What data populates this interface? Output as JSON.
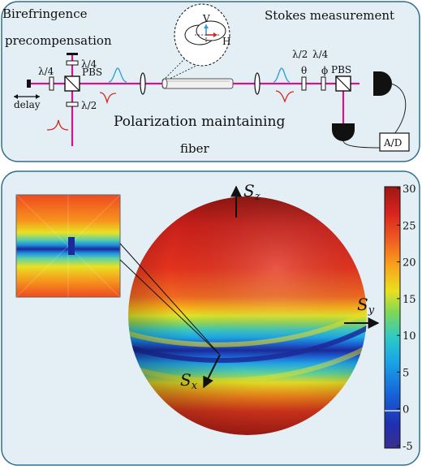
{
  "setup": {
    "left_title_1": "Birefringence",
    "left_title_2": "precompensation",
    "right_title": "Stokes measurement",
    "fiber_label_1": "Polarization maintaining",
    "fiber_label_2": "fiber",
    "delay_label": "delay",
    "quarter_wave_left": "λ/4",
    "quarter_wave_top": "λ/4",
    "half_wave_bottom": "λ/2",
    "pbs_left": "PBS",
    "half_wave_right": "λ/2",
    "quarter_wave_right": "λ/4",
    "theta": "θ",
    "phi": "ϕ",
    "pbs_right": "PBS",
    "ad_label": "A/D",
    "inset_v": "V",
    "inset_h": "H"
  },
  "sphere": {
    "axis_z": "S",
    "axis_z_sub": "z",
    "axis_y": "S",
    "axis_y_sub": "y",
    "axis_x": "S",
    "axis_x_sub": "x"
  },
  "colorbar": {
    "ticks": [
      "30",
      "25",
      "20",
      "15",
      "10",
      "5",
      "0",
      "-5"
    ],
    "range": [
      -5,
      30
    ],
    "colors": [
      "#3a2f8f",
      "#1f2fb0",
      "#1760d8",
      "#19a4e6",
      "#2cc8c8",
      "#7ed857",
      "#e8e020",
      "#f9a11b",
      "#ef5a22",
      "#d8231e",
      "#9e1714"
    ]
  },
  "colors": {
    "panel_bg": "#e3eef5",
    "panel_border": "#2e6e8e",
    "beam": "#d0158a",
    "pulse_blue": "#2a9bd8",
    "pulse_red": "#d8231e"
  }
}
